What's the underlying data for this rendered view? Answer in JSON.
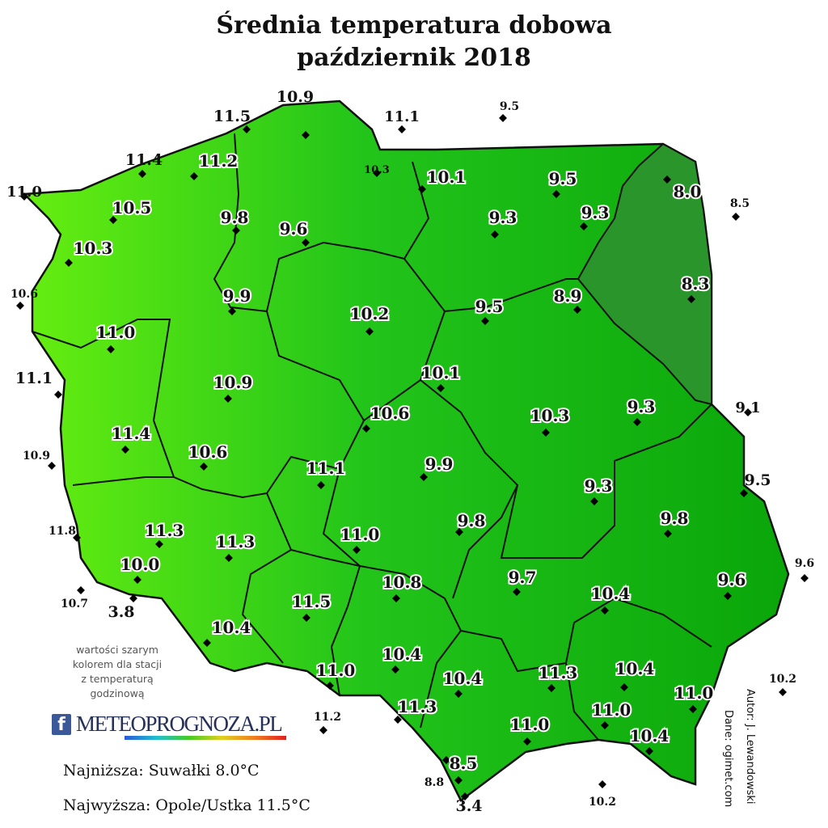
{
  "title": {
    "line1": "Średnia temperatura dobowa",
    "line2": "październik 2018"
  },
  "colors": {
    "warm": "#66ee11",
    "mid": "#22c41a",
    "cool": "#0aa60a",
    "coolest": "#2a952a",
    "border": "#111111"
  },
  "legend_note": [
    "wartości szarym",
    "kolorem dla stacji",
    "z temperaturą",
    "godzinową"
  ],
  "logo": {
    "fb": "f",
    "text": "METEOPROGNOZA.PL"
  },
  "extremes": {
    "lowest": "Najniższa: Suwałki 8.0°C",
    "highest": "Najwyższa: Opole/Ustka 11.5°C"
  },
  "credits": {
    "author": "Autor: J. Lewandowski",
    "source": "Dane: ogimet.com"
  },
  "stations": [
    {
      "value": "11.5",
      "style": "plain"
    },
    {
      "value": "10.9",
      "style": "plain"
    },
    {
      "value": "11.1",
      "style": "plain"
    },
    {
      "value": "9.5",
      "style": "plain"
    },
    {
      "value": "11.4",
      "style": "plain"
    },
    {
      "value": "11.0",
      "style": "plain"
    },
    {
      "value": "8.5",
      "style": "plain"
    },
    {
      "value": "10.6",
      "style": "plain"
    },
    {
      "value": "11.1",
      "style": "plain"
    },
    {
      "value": "10.9",
      "style": "plain"
    },
    {
      "value": "11.8",
      "style": "plain"
    },
    {
      "value": "10.7",
      "style": "plain"
    },
    {
      "value": "3.8",
      "style": "plain"
    },
    {
      "value": "9.1",
      "style": "plain"
    },
    {
      "value": "9.5",
      "style": "plain"
    },
    {
      "value": "9.6",
      "style": "plain"
    },
    {
      "value": "10.2",
      "style": "plain"
    },
    {
      "value": "11.2",
      "style": "plain"
    },
    {
      "value": "8.8",
      "style": "plain"
    },
    {
      "value": "3.4",
      "style": "plain"
    },
    {
      "value": "10.2",
      "style": "plain"
    },
    {
      "value": "10.3",
      "style": "plain"
    },
    {
      "value": "11.2",
      "style": "outline"
    },
    {
      "value": "10.1",
      "style": "outline"
    },
    {
      "value": "9.5",
      "style": "outline"
    },
    {
      "value": "10.5",
      "style": "outline"
    },
    {
      "value": "9.8",
      "style": "outline"
    },
    {
      "value": "9.6",
      "style": "outline"
    },
    {
      "value": "9.3",
      "style": "outline"
    },
    {
      "value": "9.3",
      "style": "outline"
    },
    {
      "value": "8.0",
      "style": "outline"
    },
    {
      "value": "10.3",
      "style": "outline"
    },
    {
      "value": "9.9",
      "style": "outline"
    },
    {
      "value": "10.2",
      "style": "outline"
    },
    {
      "value": "9.5",
      "style": "outline"
    },
    {
      "value": "8.9",
      "style": "outline"
    },
    {
      "value": "8.3",
      "style": "outline"
    },
    {
      "value": "11.0",
      "style": "outline"
    },
    {
      "value": "10.9",
      "style": "outline"
    },
    {
      "value": "10.1",
      "style": "outline"
    },
    {
      "value": "10.6",
      "style": "outline"
    },
    {
      "value": "10.3",
      "style": "outline"
    },
    {
      "value": "9.3",
      "style": "outline"
    },
    {
      "value": "11.4",
      "style": "outline"
    },
    {
      "value": "10.6",
      "style": "outline"
    },
    {
      "value": "11.1",
      "style": "outline"
    },
    {
      "value": "9.9",
      "style": "outline"
    },
    {
      "value": "9.3",
      "style": "outline"
    },
    {
      "value": "9.8",
      "style": "outline"
    },
    {
      "value": "9.8",
      "style": "outline"
    },
    {
      "value": "11.3",
      "style": "outline"
    },
    {
      "value": "11.3",
      "style": "outline"
    },
    {
      "value": "11.0",
      "style": "outline"
    },
    {
      "value": "10.0",
      "style": "outline"
    },
    {
      "value": "10.8",
      "style": "outline"
    },
    {
      "value": "9.7",
      "style": "outline"
    },
    {
      "value": "10.4",
      "style": "outline"
    },
    {
      "value": "9.6",
      "style": "outline"
    },
    {
      "value": "11.5",
      "style": "outline"
    },
    {
      "value": "10.4",
      "style": "outline"
    },
    {
      "value": "10.4",
      "style": "outline"
    },
    {
      "value": "11.0",
      "style": "outline"
    },
    {
      "value": "10.4",
      "style": "outline"
    },
    {
      "value": "11.3",
      "style": "outline"
    },
    {
      "value": "10.4",
      "style": "outline"
    },
    {
      "value": "11.0",
      "style": "outline"
    },
    {
      "value": "11.3",
      "style": "outline"
    },
    {
      "value": "11.0",
      "style": "outline"
    },
    {
      "value": "11.0",
      "style": "outline"
    },
    {
      "value": "10.4",
      "style": "outline"
    },
    {
      "value": "8.5",
      "style": "outline"
    }
  ]
}
